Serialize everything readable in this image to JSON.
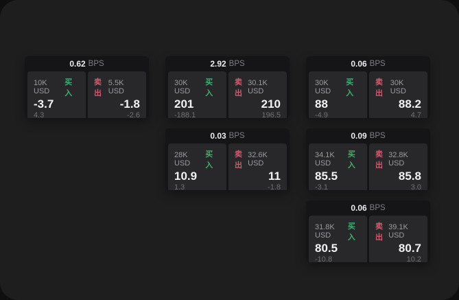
{
  "page": {
    "bps_unit": "BPS",
    "buy_label": "买入",
    "sell_label": "卖出",
    "colors": {
      "page_bg": "#1e1e1f",
      "card_bg": "#151517",
      "panel_bg": "#28282a",
      "buy_green": "#3fae73",
      "sell_red": "#d25a6e"
    }
  },
  "cards": [
    {
      "bps": "0.62",
      "grid": {
        "col": 1,
        "row": 1
      },
      "buy": {
        "size": "10K USD",
        "price": "-3.7",
        "delta": "4.3"
      },
      "sell": {
        "size": "5.5K USD",
        "price": "-1.8",
        "delta": "-2.6"
      }
    },
    {
      "bps": "2.92",
      "grid": {
        "col": 2,
        "row": 1
      },
      "buy": {
        "size": "30K USD",
        "price": "201",
        "delta": "-188.1"
      },
      "sell": {
        "size": "30.1K USD",
        "price": "210",
        "delta": "196.5"
      }
    },
    {
      "bps": "0.06",
      "grid": {
        "col": 3,
        "row": 1
      },
      "buy": {
        "size": "30K USD",
        "price": "88",
        "delta": "-4.9"
      },
      "sell": {
        "size": "30K USD",
        "price": "88.2",
        "delta": "4.7"
      }
    },
    {
      "bps": "0.03",
      "grid": {
        "col": 2,
        "row": 2
      },
      "buy": {
        "size": "28K USD",
        "price": "10.9",
        "delta": "1.3"
      },
      "sell": {
        "size": "32.6K USD",
        "price": "11",
        "delta": "-1.8"
      }
    },
    {
      "bps": "0.09",
      "grid": {
        "col": 3,
        "row": 2
      },
      "buy": {
        "size": "34.1K USD",
        "price": "85.5",
        "delta": "-3.1"
      },
      "sell": {
        "size": "32.8K USD",
        "price": "85.8",
        "delta": "3.0"
      }
    },
    {
      "bps": "0.06",
      "grid": {
        "col": 3,
        "row": 3
      },
      "buy": {
        "size": "31.8K USD",
        "price": "80.5",
        "delta": "-10.8"
      },
      "sell": {
        "size": "39.1K USD",
        "price": "80.7",
        "delta": "10.2"
      }
    }
  ]
}
